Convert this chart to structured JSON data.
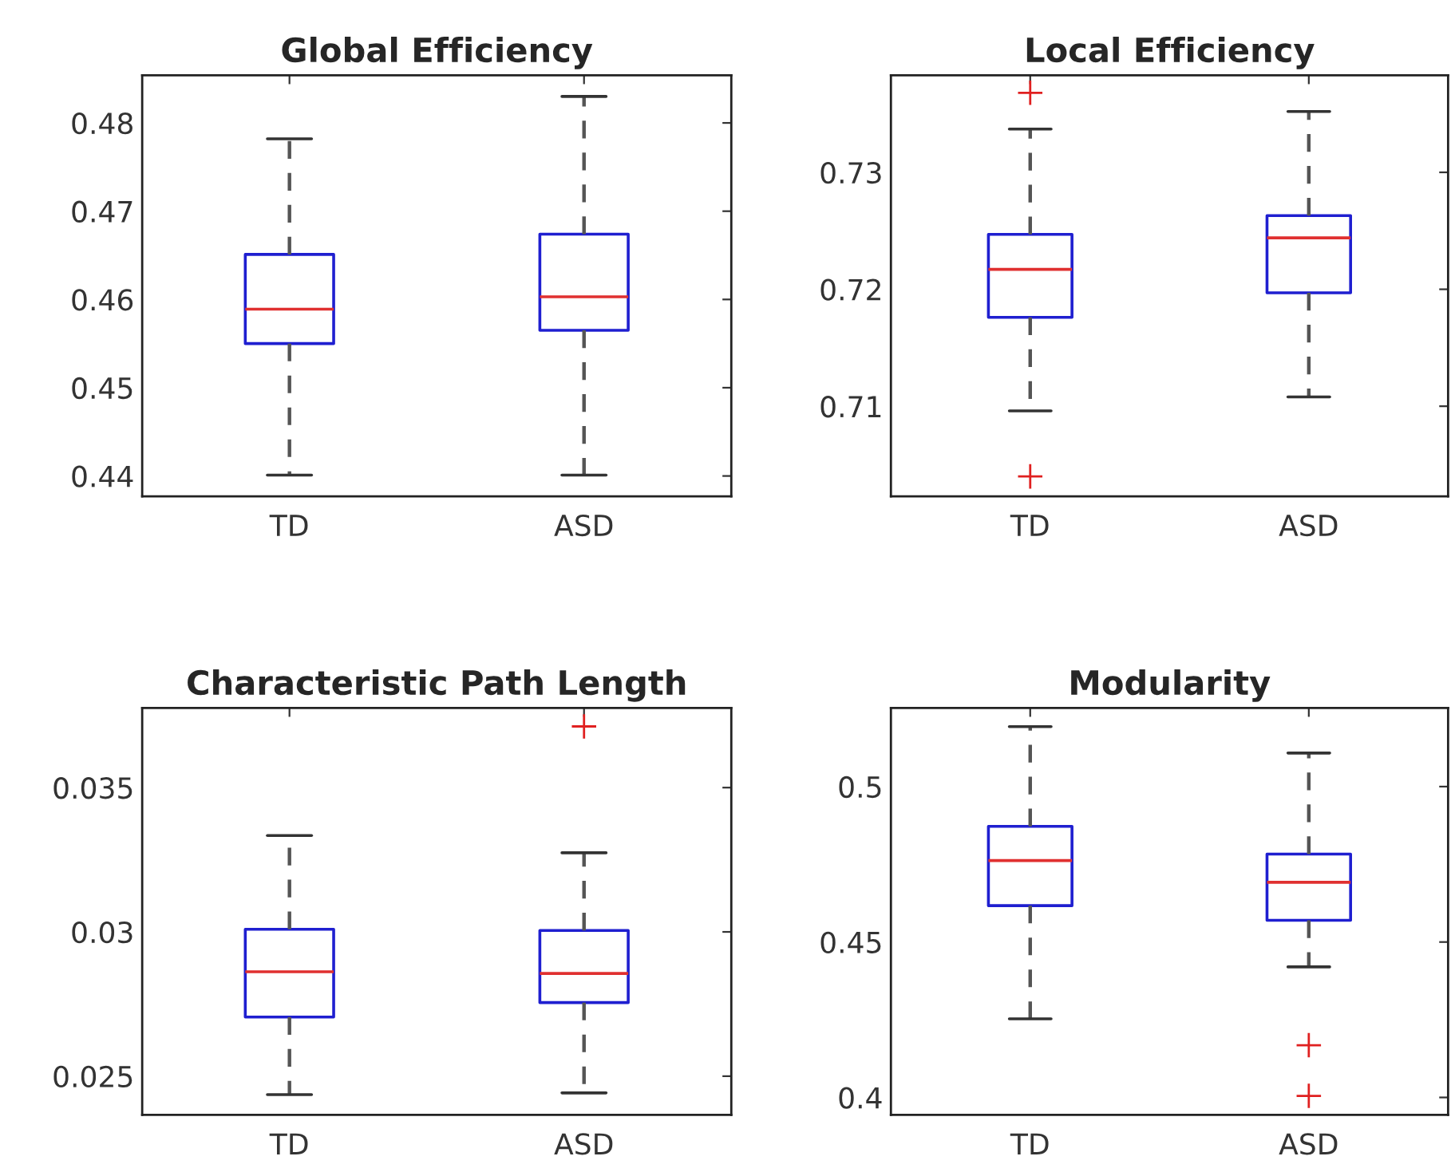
{
  "chart_data": [
    {
      "type": "box",
      "title": "Global Efficiency",
      "categories": [
        "TD",
        "ASD"
      ],
      "ylim": [
        0.4377,
        0.4854
      ],
      "yticks": [
        0.44,
        0.45,
        0.46,
        0.47,
        0.48
      ],
      "grid": false,
      "boxes": [
        {
          "low": 0.4401,
          "q1": 0.455,
          "median": 0.4589,
          "q3": 0.4651,
          "high": 0.4782
        },
        {
          "low": 0.4401,
          "q1": 0.4565,
          "median": 0.4603,
          "q3": 0.4674,
          "high": 0.483
        }
      ]
    },
    {
      "type": "box",
      "title": "Local Efficiency",
      "categories": [
        "TD",
        "ASD"
      ],
      "ylim": [
        0.7023,
        0.7383
      ],
      "yticks": [
        0.71,
        0.72,
        0.73
      ],
      "grid": false,
      "boxes": [
        {
          "low": 0.7096,
          "q1": 0.7176,
          "median": 0.7217,
          "q3": 0.7247,
          "high": 0.7337,
          "outliers": [
            0.7368,
            0.704
          ]
        },
        {
          "low": 0.7108,
          "q1": 0.7197,
          "median": 0.7244,
          "q3": 0.7263,
          "high": 0.7352
        }
      ]
    },
    {
      "type": "box",
      "title": "Characteristic Path Length",
      "categories": [
        "TD",
        "ASD"
      ],
      "ylim": [
        0.02366,
        0.03776
      ],
      "yticks": [
        0.025,
        0.03,
        0.035
      ],
      "grid": false,
      "boxes": [
        {
          "low": 0.02436,
          "q1": 0.02705,
          "median": 0.02862,
          "q3": 0.03009,
          "high": 0.03334
        },
        {
          "low": 0.02442,
          "q1": 0.02755,
          "median": 0.02856,
          "q3": 0.03005,
          "high": 0.03274,
          "outliers": [
            0.03712
          ]
        }
      ]
    },
    {
      "type": "box",
      "title": "Modularity",
      "categories": [
        "TD",
        "ASD"
      ],
      "ylim": [
        0.3944,
        0.5253
      ],
      "yticks": [
        0.4,
        0.45,
        0.5
      ],
      "grid": false,
      "boxes": [
        {
          "low": 0.4253,
          "q1": 0.4617,
          "median": 0.4762,
          "q3": 0.4872,
          "high": 0.5193
        },
        {
          "low": 0.442,
          "q1": 0.457,
          "median": 0.4692,
          "q3": 0.4783,
          "high": 0.5108,
          "outliers": [
            0.4168,
            0.4005
          ]
        }
      ]
    }
  ]
}
